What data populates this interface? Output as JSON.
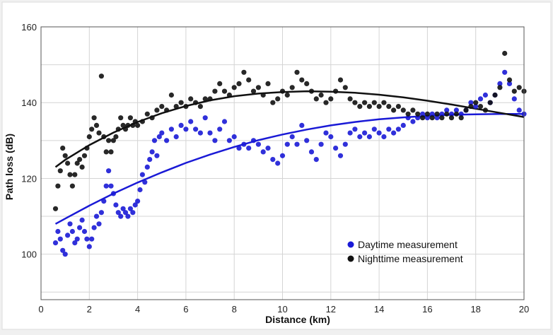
{
  "chart_data": {
    "type": "scatter",
    "xlabel": "Distance (km)",
    "ylabel": "Path loss (dB)",
    "xlim": [
      0,
      20
    ],
    "ylim": [
      88,
      160
    ],
    "x_ticks": [
      "0",
      "2",
      "4",
      "6",
      "8",
      "10",
      "12",
      "14",
      "16",
      "18",
      "20"
    ],
    "y_ticks": [
      "100",
      "120",
      "140",
      "160"
    ],
    "grid": true,
    "legend_position": "lower-right",
    "series": [
      {
        "name": "Daytime measurement",
        "color": "#1a1ad6",
        "marker": "dot",
        "points": [
          [
            0.6,
            103
          ],
          [
            0.7,
            106
          ],
          [
            0.8,
            104
          ],
          [
            0.9,
            101
          ],
          [
            1.0,
            100
          ],
          [
            1.1,
            105
          ],
          [
            1.2,
            108
          ],
          [
            1.3,
            106
          ],
          [
            1.4,
            103
          ],
          [
            1.5,
            104
          ],
          [
            1.6,
            107
          ],
          [
            1.7,
            109
          ],
          [
            1.8,
            106
          ],
          [
            1.9,
            104
          ],
          [
            2.0,
            102
          ],
          [
            2.1,
            104
          ],
          [
            2.2,
            107
          ],
          [
            2.3,
            110
          ],
          [
            2.4,
            108
          ],
          [
            2.5,
            111
          ],
          [
            2.6,
            114
          ],
          [
            2.7,
            118
          ],
          [
            2.8,
            122
          ],
          [
            2.9,
            118
          ],
          [
            3.0,
            116
          ],
          [
            3.1,
            113
          ],
          [
            3.2,
            111
          ],
          [
            3.3,
            110
          ],
          [
            3.4,
            112
          ],
          [
            3.5,
            111
          ],
          [
            3.6,
            110
          ],
          [
            3.7,
            112
          ],
          [
            3.8,
            111
          ],
          [
            3.9,
            113
          ],
          [
            4.0,
            114
          ],
          [
            4.1,
            117
          ],
          [
            4.2,
            121
          ],
          [
            4.3,
            119
          ],
          [
            4.4,
            123
          ],
          [
            4.5,
            125
          ],
          [
            4.6,
            127
          ],
          [
            4.7,
            130
          ],
          [
            4.8,
            126
          ],
          [
            4.9,
            131
          ],
          [
            5.0,
            132
          ],
          [
            5.2,
            130
          ],
          [
            5.4,
            133
          ],
          [
            5.6,
            131
          ],
          [
            5.8,
            134
          ],
          [
            6.0,
            133
          ],
          [
            6.2,
            135
          ],
          [
            6.4,
            133
          ],
          [
            6.6,
            132
          ],
          [
            6.8,
            136
          ],
          [
            7.0,
            132
          ],
          [
            7.2,
            130
          ],
          [
            7.4,
            133
          ],
          [
            7.6,
            135
          ],
          [
            7.8,
            130
          ],
          [
            8.0,
            131
          ],
          [
            8.2,
            128
          ],
          [
            8.4,
            129
          ],
          [
            8.6,
            128
          ],
          [
            8.8,
            130
          ],
          [
            9.0,
            129
          ],
          [
            9.2,
            127
          ],
          [
            9.4,
            128
          ],
          [
            9.6,
            125
          ],
          [
            9.8,
            124
          ],
          [
            10.0,
            126
          ],
          [
            10.2,
            129
          ],
          [
            10.4,
            131
          ],
          [
            10.6,
            129
          ],
          [
            10.8,
            134
          ],
          [
            11.0,
            130
          ],
          [
            11.2,
            127
          ],
          [
            11.4,
            125
          ],
          [
            11.6,
            129
          ],
          [
            11.8,
            132
          ],
          [
            12.0,
            131
          ],
          [
            12.2,
            128
          ],
          [
            12.4,
            126
          ],
          [
            12.6,
            129
          ],
          [
            12.8,
            132
          ],
          [
            13.0,
            133
          ],
          [
            13.2,
            131
          ],
          [
            13.4,
            132
          ],
          [
            13.6,
            131
          ],
          [
            13.8,
            133
          ],
          [
            14.0,
            132
          ],
          [
            14.2,
            131
          ],
          [
            14.4,
            133
          ],
          [
            14.6,
            132
          ],
          [
            14.8,
            133
          ],
          [
            15.0,
            134
          ],
          [
            15.2,
            136
          ],
          [
            15.4,
            135
          ],
          [
            15.6,
            136
          ],
          [
            15.8,
            137
          ],
          [
            16.0,
            136
          ],
          [
            16.2,
            137
          ],
          [
            16.4,
            136
          ],
          [
            16.6,
            137
          ],
          [
            16.8,
            138
          ],
          [
            17.0,
            137
          ],
          [
            17.2,
            138
          ],
          [
            17.4,
            137
          ],
          [
            17.6,
            138
          ],
          [
            17.8,
            140
          ],
          [
            18.0,
            139
          ],
          [
            18.2,
            141
          ],
          [
            18.4,
            142
          ],
          [
            18.6,
            140
          ],
          [
            18.8,
            142
          ],
          [
            19.0,
            145
          ],
          [
            19.2,
            148
          ],
          [
            19.4,
            145
          ],
          [
            19.6,
            141
          ],
          [
            19.8,
            138
          ],
          [
            20.0,
            137
          ]
        ],
        "trend": [
          [
            0.6,
            108
          ],
          [
            1,
            109.4
          ],
          [
            2,
            112.8
          ],
          [
            3,
            116
          ],
          [
            4,
            118.9
          ],
          [
            5,
            121.6
          ],
          [
            6,
            124.1
          ],
          [
            7,
            126.3
          ],
          [
            8,
            128.3
          ],
          [
            9,
            130.1
          ],
          [
            10,
            131.6
          ],
          [
            11,
            132.9
          ],
          [
            12,
            134
          ],
          [
            13,
            134.9
          ],
          [
            14,
            135.6
          ],
          [
            15,
            136.1
          ],
          [
            16,
            136.5
          ],
          [
            17,
            136.8
          ],
          [
            18,
            136.9
          ],
          [
            19,
            137
          ],
          [
            20,
            137
          ]
        ]
      },
      {
        "name": "Nighttime measurement",
        "color": "#111111",
        "marker": "dot",
        "points": [
          [
            0.6,
            112
          ],
          [
            0.7,
            118
          ],
          [
            0.8,
            122
          ],
          [
            0.9,
            128
          ],
          [
            1.0,
            126
          ],
          [
            1.1,
            124
          ],
          [
            1.2,
            121
          ],
          [
            1.3,
            118
          ],
          [
            1.4,
            121
          ],
          [
            1.5,
            124
          ],
          [
            1.6,
            125
          ],
          [
            1.7,
            123
          ],
          [
            1.8,
            126
          ],
          [
            1.9,
            128
          ],
          [
            2.0,
            131
          ],
          [
            2.1,
            133
          ],
          [
            2.2,
            136
          ],
          [
            2.3,
            134
          ],
          [
            2.4,
            132
          ],
          [
            2.5,
            147
          ],
          [
            2.6,
            131
          ],
          [
            2.7,
            127
          ],
          [
            2.8,
            130
          ],
          [
            2.9,
            127
          ],
          [
            3.0,
            130
          ],
          [
            3.1,
            131
          ],
          [
            3.2,
            133
          ],
          [
            3.3,
            136
          ],
          [
            3.4,
            134
          ],
          [
            3.5,
            133
          ],
          [
            3.6,
            134
          ],
          [
            3.7,
            136
          ],
          [
            3.8,
            134
          ],
          [
            3.9,
            135
          ],
          [
            4.0,
            134
          ],
          [
            4.2,
            135
          ],
          [
            4.4,
            137
          ],
          [
            4.6,
            136
          ],
          [
            4.8,
            138
          ],
          [
            5.0,
            139
          ],
          [
            5.2,
            138
          ],
          [
            5.4,
            142
          ],
          [
            5.6,
            139
          ],
          [
            5.8,
            140
          ],
          [
            6.0,
            139
          ],
          [
            6.2,
            141
          ],
          [
            6.4,
            140
          ],
          [
            6.6,
            139
          ],
          [
            6.8,
            141
          ],
          [
            7.0,
            141
          ],
          [
            7.2,
            143
          ],
          [
            7.4,
            145
          ],
          [
            7.6,
            143
          ],
          [
            7.8,
            142
          ],
          [
            8.0,
            144
          ],
          [
            8.2,
            145
          ],
          [
            8.4,
            148
          ],
          [
            8.6,
            146
          ],
          [
            8.8,
            143
          ],
          [
            9.0,
            144
          ],
          [
            9.2,
            142
          ],
          [
            9.4,
            145
          ],
          [
            9.6,
            140
          ],
          [
            9.8,
            141
          ],
          [
            10.0,
            143
          ],
          [
            10.2,
            142
          ],
          [
            10.4,
            144
          ],
          [
            10.6,
            148
          ],
          [
            10.8,
            146
          ],
          [
            11.0,
            145
          ],
          [
            11.2,
            143
          ],
          [
            11.4,
            141
          ],
          [
            11.6,
            142
          ],
          [
            11.8,
            140
          ],
          [
            12.0,
            141
          ],
          [
            12.2,
            143
          ],
          [
            12.4,
            146
          ],
          [
            12.6,
            144
          ],
          [
            12.8,
            141
          ],
          [
            13.0,
            140
          ],
          [
            13.2,
            139
          ],
          [
            13.4,
            140
          ],
          [
            13.6,
            139
          ],
          [
            13.8,
            140
          ],
          [
            14.0,
            139
          ],
          [
            14.2,
            140
          ],
          [
            14.4,
            139
          ],
          [
            14.6,
            138
          ],
          [
            14.8,
            139
          ],
          [
            15.0,
            138
          ],
          [
            15.2,
            137
          ],
          [
            15.4,
            138
          ],
          [
            15.6,
            137
          ],
          [
            15.8,
            136
          ],
          [
            16.0,
            137
          ],
          [
            16.2,
            136
          ],
          [
            16.4,
            137
          ],
          [
            16.6,
            136
          ],
          [
            16.8,
            137
          ],
          [
            17.0,
            136
          ],
          [
            17.2,
            137
          ],
          [
            17.4,
            136
          ],
          [
            17.6,
            138
          ],
          [
            17.8,
            139
          ],
          [
            18.0,
            140
          ],
          [
            18.2,
            139
          ],
          [
            18.4,
            138
          ],
          [
            18.6,
            140
          ],
          [
            18.8,
            142
          ],
          [
            19.0,
            144
          ],
          [
            19.2,
            153
          ],
          [
            19.4,
            146
          ],
          [
            19.6,
            143
          ],
          [
            19.8,
            144
          ],
          [
            20.0,
            143
          ]
        ],
        "trend": [
          [
            0.6,
            123
          ],
          [
            1,
            124.9
          ],
          [
            2,
            128.8
          ],
          [
            3,
            132.1
          ],
          [
            4,
            134.9
          ],
          [
            5,
            137.2
          ],
          [
            6,
            139.1
          ],
          [
            7,
            140.6
          ],
          [
            8,
            141.7
          ],
          [
            9,
            142.4
          ],
          [
            10,
            142.8
          ],
          [
            11,
            143
          ],
          [
            12,
            142.9
          ],
          [
            13,
            142.6
          ],
          [
            14,
            142.1
          ],
          [
            15,
            141.4
          ],
          [
            16,
            140.5
          ],
          [
            17,
            139.5
          ],
          [
            18,
            138.4
          ],
          [
            19,
            137.3
          ],
          [
            20,
            136.2
          ]
        ]
      }
    ]
  }
}
